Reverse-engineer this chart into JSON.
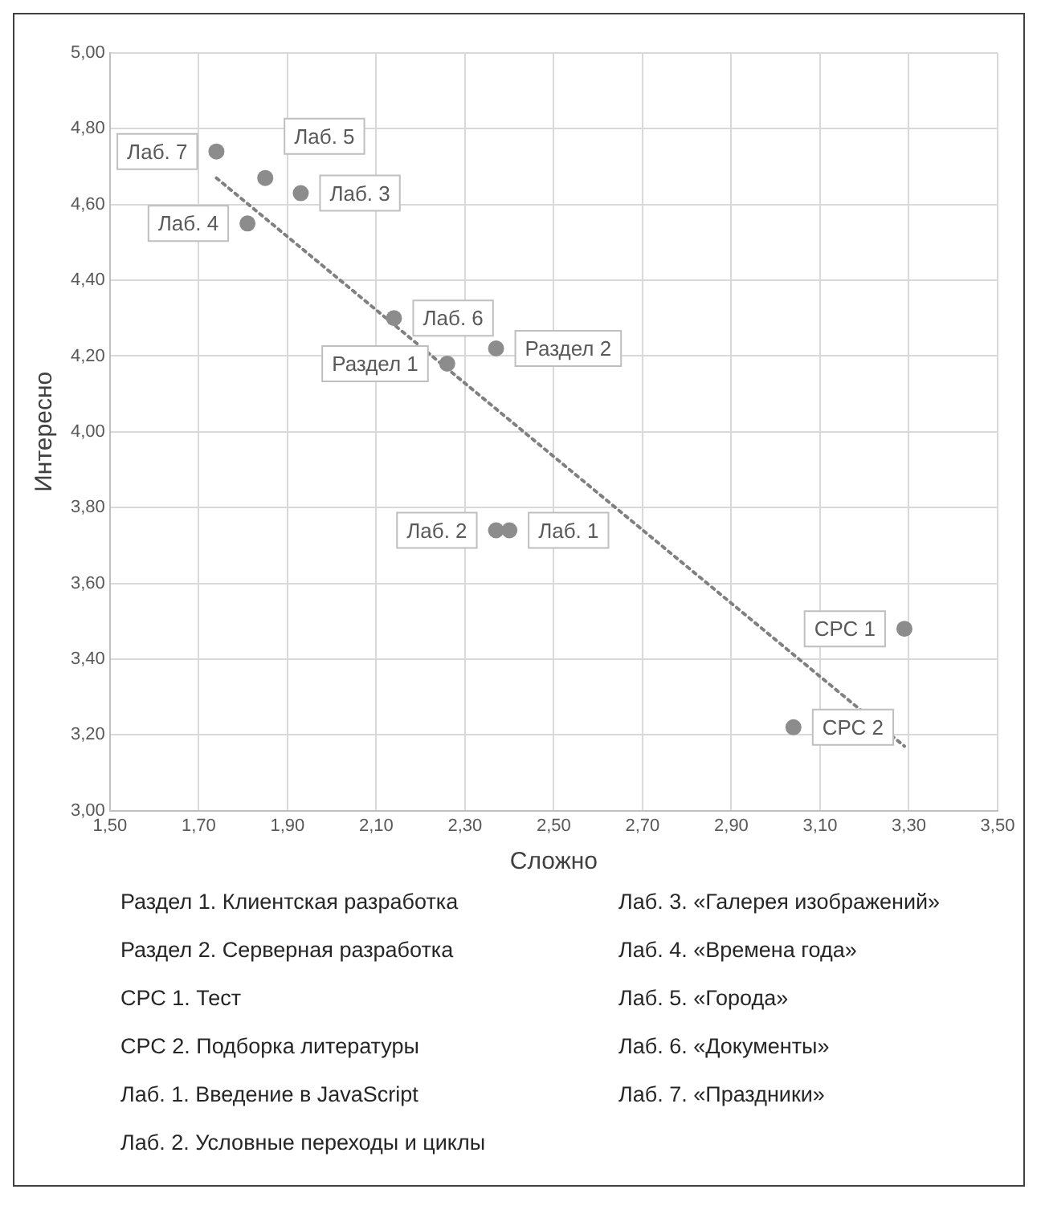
{
  "chart_data": {
    "type": "scatter",
    "xlabel": "Сложно",
    "ylabel": "Интересно",
    "xlim": [
      1.5,
      3.5
    ],
    "ylim": [
      3,
      5
    ],
    "xticks": [
      {
        "value": 1.5,
        "label": "1,50"
      },
      {
        "value": 1.7,
        "label": "1,70"
      },
      {
        "value": 1.9,
        "label": "1,90"
      },
      {
        "value": 2.1,
        "label": "2,10"
      },
      {
        "value": 2.3,
        "label": "2,30"
      },
      {
        "value": 2.5,
        "label": "2,50"
      },
      {
        "value": 2.7,
        "label": "2,70"
      },
      {
        "value": 2.9,
        "label": "2,90"
      },
      {
        "value": 3.1,
        "label": "3,10"
      },
      {
        "value": 3.3,
        "label": "3,30"
      },
      {
        "value": 3.5,
        "label": "3,50"
      }
    ],
    "yticks": [
      {
        "value": 3,
        "label": "3,00"
      },
      {
        "value": 3.2,
        "label": "3,20"
      },
      {
        "value": 3.4,
        "label": "3,40"
      },
      {
        "value": 3.6,
        "label": "3,60"
      },
      {
        "value": 3.8,
        "label": "3,80"
      },
      {
        "value": 4,
        "label": "4,00"
      },
      {
        "value": 4.2,
        "label": "4,20"
      },
      {
        "value": 4.4,
        "label": "4,40"
      },
      {
        "value": 4.6,
        "label": "4,60"
      },
      {
        "value": 4.8,
        "label": "4,80"
      },
      {
        "value": 5,
        "label": "5,00"
      }
    ],
    "grid": true,
    "marker": "circle",
    "series": [
      {
        "type": "scatter",
        "color": "#8c8c8c",
        "x": [
          1.74,
          1.85,
          1.93,
          1.81,
          2.14,
          2.26,
          2.37,
          2.37,
          2.4,
          3.04,
          3.29
        ],
        "values": [
          4.74,
          4.67,
          4.63,
          4.55,
          4.3,
          4.18,
          4.22,
          3.74,
          3.74,
          3.22,
          3.48
        ]
      },
      {
        "type": "line",
        "color": "#808080",
        "line_style": "dotted",
        "marker": "none",
        "x": [
          1.74,
          3.29
        ],
        "values": [
          4.67,
          3.17
        ]
      }
    ],
    "annotations": [
      {
        "text": "Лаб. 7",
        "x": 1.74,
        "y": 4.74
      },
      {
        "text": "Лаб. 5",
        "x": 1.85,
        "y": 4.67
      },
      {
        "text": "Лаб. 3",
        "x": 1.93,
        "y": 4.63
      },
      {
        "text": "Лаб. 4",
        "x": 1.81,
        "y": 4.55
      },
      {
        "text": "Лаб. 6",
        "x": 2.14,
        "y": 4.3
      },
      {
        "text": "Раздел 1",
        "x": 2.26,
        "y": 4.18
      },
      {
        "text": "Раздел 2",
        "x": 2.37,
        "y": 4.22
      },
      {
        "text": "Лаб. 2",
        "x": 2.37,
        "y": 3.74
      },
      {
        "text": "Лаб. 1",
        "x": 2.4,
        "y": 3.74
      },
      {
        "text": "СРС 2",
        "x": 3.04,
        "y": 3.22
      },
      {
        "text": "СРС 1",
        "x": 3.29,
        "y": 3.48
      },
      "Раздел 1. Клиентская разработка",
      "Раздел 2. Серверная разработка",
      "СРС 1. Тест",
      "СРС 2. Подборка литературы",
      "Лаб. 1. Введение в JavaScript",
      "Лаб. 2. Условные переходы и циклы",
      "Лаб. 3. «Галерея изображений»",
      "Лаб. 4. «Времена года»",
      "Лаб. 5. «Города»",
      "Лаб. 6. «Документы»",
      "Лаб. 7. «Праздники»"
    ]
  }
}
